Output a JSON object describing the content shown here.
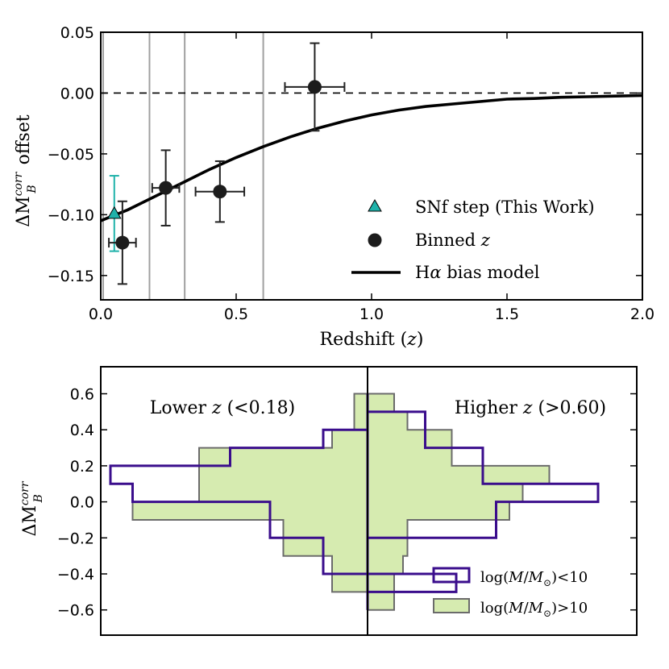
{
  "chart_data": [
    {
      "type": "scatter",
      "xlabel": "Redshift (z)",
      "ylabel": "ΔM_B^corr offset",
      "xlim": [
        0.0,
        2.0
      ],
      "ylim": [
        -0.17,
        0.05
      ],
      "xticks": [
        "0.0",
        "0.5",
        "1.0",
        "1.5",
        "2.0"
      ],
      "yticks": [
        "0.05",
        "0.00",
        "−0.05",
        "−0.10",
        "−0.15"
      ],
      "ytick_values": [
        0.05,
        0.0,
        -0.05,
        -0.1,
        -0.15
      ],
      "xtick_values": [
        0.0,
        0.5,
        1.0,
        1.5,
        2.0
      ],
      "reference_line_y": 0.0,
      "bin_edges": [
        0.0,
        0.18,
        0.31,
        0.6
      ],
      "colors": {
        "snf": "#20b2aa",
        "binned": "#1c1c1c",
        "model": "#000000",
        "grid": "#a0a0a0"
      },
      "series": [
        {
          "name": "SNf step (This Work)",
          "marker": "triangle",
          "points": [
            {
              "x": 0.05,
              "y": -0.099,
              "yerr": 0.031
            }
          ]
        },
        {
          "name": "Binned z",
          "marker": "circle",
          "points": [
            {
              "x": 0.08,
              "y": -0.123,
              "xerr": 0.05,
              "yerr": 0.034
            },
            {
              "x": 0.24,
              "y": -0.078,
              "xerr": 0.05,
              "yerr": 0.031
            },
            {
              "x": 0.44,
              "y": -0.081,
              "xerr": 0.09,
              "yerr": 0.025
            },
            {
              "x": 0.79,
              "y": 0.005,
              "xerr": 0.11,
              "yerr": 0.036
            }
          ]
        },
        {
          "name": "Hα bias model",
          "marker": "line",
          "x": [
            0.0,
            0.1,
            0.2,
            0.3,
            0.4,
            0.5,
            0.6,
            0.7,
            0.8,
            0.9,
            1.0,
            1.1,
            1.2,
            1.3,
            1.4,
            1.5,
            1.6,
            1.7,
            1.8,
            1.9,
            2.0
          ],
          "y": [
            -0.105,
            -0.096,
            -0.085,
            -0.074,
            -0.063,
            -0.053,
            -0.044,
            -0.036,
            -0.029,
            -0.023,
            -0.018,
            -0.014,
            -0.011,
            -0.009,
            -0.007,
            -0.005,
            -0.0045,
            -0.0035,
            -0.003,
            -0.0025,
            -0.002
          ]
        }
      ],
      "legend": {
        "position": "lower-right",
        "entries": [
          "SNf step (This Work)",
          "Binned z",
          "Hα bias model"
        ]
      }
    },
    {
      "type": "histogram",
      "orientation": "horizontal",
      "ylabel": "ΔM_B^corr",
      "ylim": [
        -0.74,
        0.75
      ],
      "yticks": [
        "0.6",
        "0.4",
        "0.2",
        "0.0",
        "−0.2",
        "−0.4",
        "−0.6"
      ],
      "ytick_values": [
        0.6,
        0.4,
        0.2,
        0.0,
        -0.2,
        -0.4,
        -0.6
      ],
      "annotations": {
        "left": "Lower z  (<0.18)",
        "right": "Higher z  (>0.60)"
      },
      "bin_edges": [
        -0.6,
        -0.5,
        -0.4,
        -0.3,
        -0.2,
        -0.1,
        0.0,
        0.1,
        0.2,
        0.3,
        0.4,
        0.5,
        0.6
      ],
      "colors": {
        "low_mass": "#3a0d8c",
        "high_mass_fill": "#d6ebb0",
        "high_mass_edge": "#6b6b6b",
        "divider": "#000000"
      },
      "series": [
        {
          "name": "log(M/M⊙)<10",
          "style": "outline",
          "left_lower_z": [
            0.0,
            0.0,
            0.5,
            0.5,
            1.1,
            1.1,
            2.65,
            2.9,
            1.55,
            0.5,
            0.0,
            0.0
          ],
          "right_higher_z": [
            0.0,
            1.0,
            0.0,
            0.0,
            1.45,
            1.45,
            2.6,
            1.3,
            1.3,
            0.65,
            0.65,
            0.0
          ]
        },
        {
          "name": "log(M/M⊙)>10",
          "style": "filled",
          "left_lower_z": [
            0.0,
            0.4,
            0.4,
            0.95,
            0.95,
            2.65,
            1.9,
            1.9,
            1.9,
            0.4,
            0.15,
            0.15
          ],
          "right_higher_z": [
            0.3,
            0.3,
            0.4,
            0.45,
            0.45,
            1.6,
            1.75,
            2.05,
            0.95,
            0.95,
            0.45,
            0.3
          ]
        }
      ],
      "legend": {
        "position": "lower-right",
        "entries": [
          "log(M/M⊙)<10",
          "log(M/M⊙)>10"
        ]
      }
    }
  ]
}
